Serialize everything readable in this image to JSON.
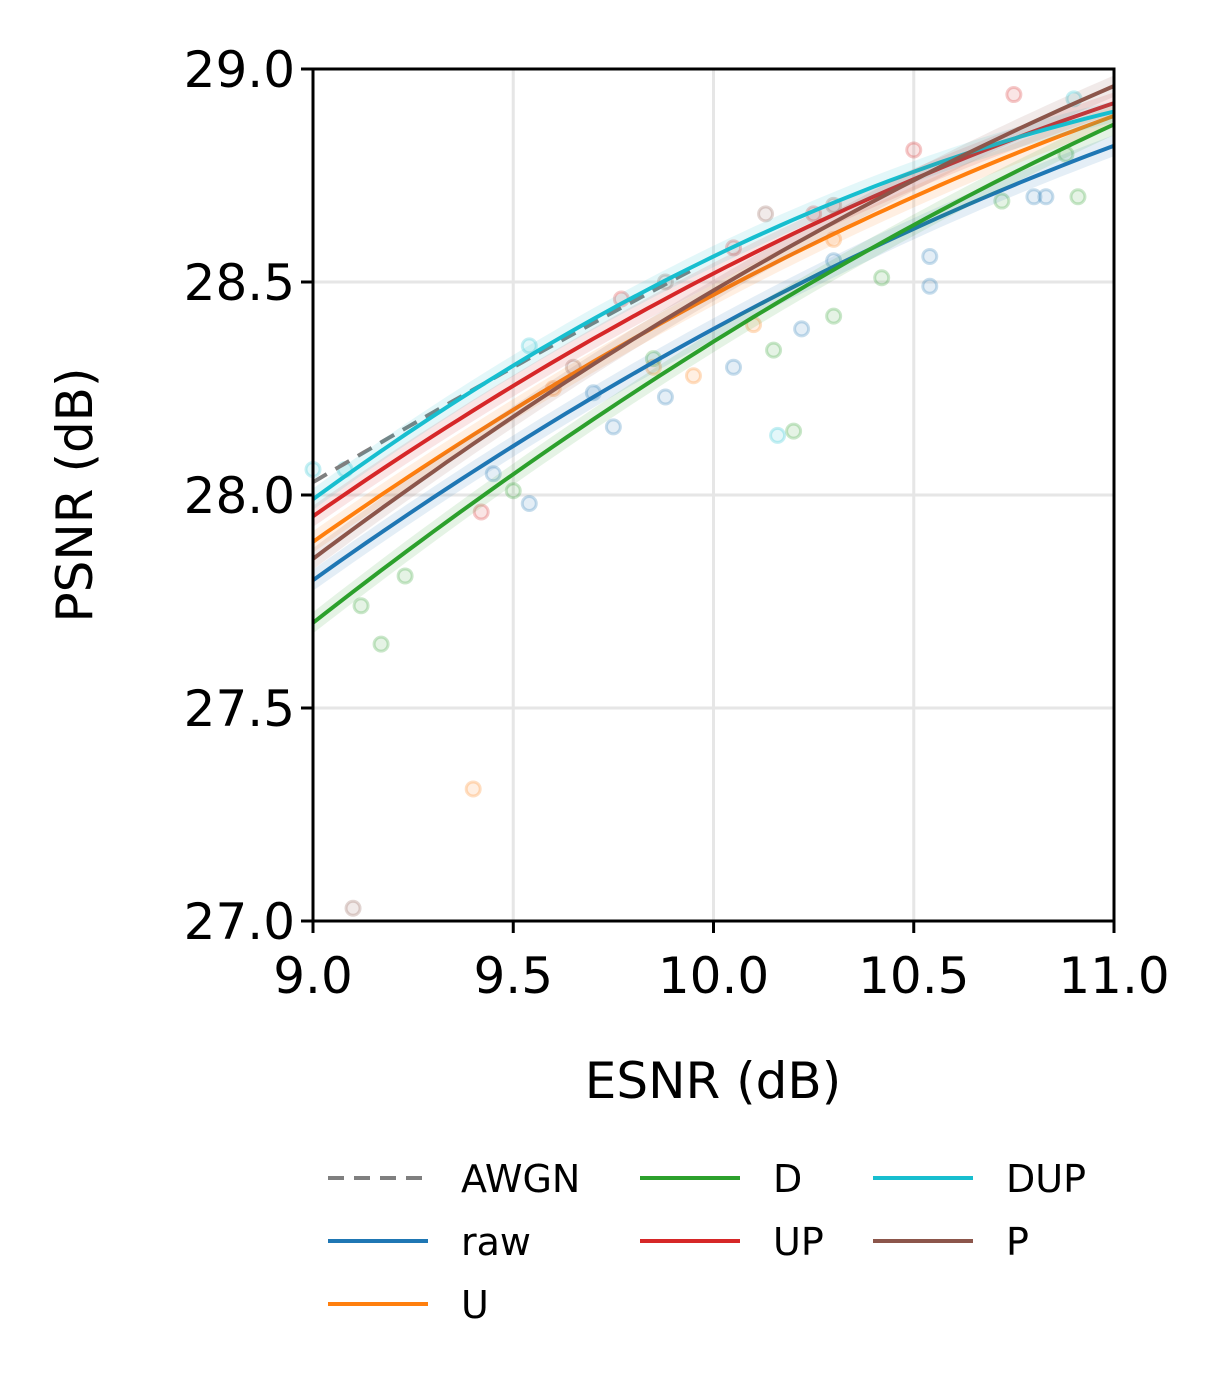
{
  "chart_data": {
    "type": "line",
    "title": "",
    "xlabel": "ESNR (dB)",
    "ylabel": "PSNR (dB)",
    "xlim": [
      9.0,
      11.0
    ],
    "ylim": [
      27.0,
      29.0
    ],
    "xticks": [
      "9.0",
      "9.5",
      "10.0",
      "10.5",
      "11.0"
    ],
    "yticks": [
      "27.0",
      "27.5",
      "28.0",
      "28.5",
      "29.0"
    ],
    "grid": true,
    "legend_placement": "bottom",
    "series": [
      {
        "name": "AWGN",
        "color": "#7f7f7f",
        "dashed": true,
        "x": [
          9.0,
          9.5,
          9.95
        ],
        "y": [
          28.03,
          28.3,
          28.53
        ],
        "points": []
      },
      {
        "name": "raw",
        "color": "#1f77b4",
        "dashed": false,
        "x": [
          9.0,
          10.0,
          11.0
        ],
        "y": [
          27.8,
          28.39,
          28.82
        ],
        "points": [
          [
            9.54,
            27.98
          ],
          [
            10.54,
            28.49
          ],
          [
            10.54,
            28.56
          ],
          [
            10.83,
            28.7
          ],
          [
            10.22,
            28.39
          ],
          [
            9.88,
            28.23
          ],
          [
            9.7,
            28.24
          ],
          [
            10.05,
            28.3
          ],
          [
            10.3,
            28.55
          ],
          [
            9.45,
            28.05
          ],
          [
            10.8,
            28.7
          ],
          [
            9.75,
            28.16
          ]
        ]
      },
      {
        "name": "U",
        "color": "#ff7f0e",
        "dashed": false,
        "x": [
          9.0,
          10.0,
          11.0
        ],
        "y": [
          27.89,
          28.47,
          28.89
        ],
        "points": [
          [
            9.4,
            27.31
          ],
          [
            9.85,
            28.3
          ],
          [
            10.1,
            28.4
          ],
          [
            9.6,
            28.25
          ],
          [
            10.3,
            28.6
          ],
          [
            9.95,
            28.28
          ]
        ]
      },
      {
        "name": "D",
        "color": "#2ca02c",
        "dashed": false,
        "x": [
          9.0,
          10.0,
          11.0
        ],
        "y": [
          27.7,
          28.36,
          28.87
        ],
        "points": [
          [
            9.17,
            27.65
          ],
          [
            9.12,
            27.74
          ],
          [
            9.23,
            27.81
          ],
          [
            10.2,
            28.15
          ],
          [
            10.91,
            28.7
          ],
          [
            10.3,
            28.42
          ],
          [
            10.42,
            28.51
          ],
          [
            10.15,
            28.34
          ],
          [
            9.5,
            28.01
          ],
          [
            9.85,
            28.32
          ],
          [
            10.88,
            28.8
          ],
          [
            10.72,
            28.69
          ]
        ]
      },
      {
        "name": "UP",
        "color": "#d62728",
        "dashed": false,
        "x": [
          9.0,
          10.0,
          11.0
        ],
        "y": [
          27.95,
          28.52,
          28.92
        ],
        "points": [
          [
            9.42,
            27.96
          ],
          [
            10.5,
            28.81
          ],
          [
            10.75,
            28.94
          ],
          [
            9.77,
            28.46
          ],
          [
            10.05,
            28.58
          ],
          [
            10.25,
            28.66
          ]
        ]
      },
      {
        "name": "DUP",
        "color": "#17becf",
        "dashed": false,
        "x": [
          9.0,
          10.0,
          11.0
        ],
        "y": [
          27.99,
          28.56,
          28.9
        ],
        "points": [
          [
            10.16,
            28.14
          ],
          [
            9.54,
            28.35
          ],
          [
            9.0,
            28.06
          ],
          [
            9.08,
            28.06
          ],
          [
            10.9,
            28.93
          ]
        ]
      },
      {
        "name": "P",
        "color": "#8c564b",
        "dashed": false,
        "x": [
          9.0,
          10.0,
          11.0
        ],
        "y": [
          27.85,
          28.48,
          28.96
        ],
        "points": [
          [
            9.1,
            27.03
          ],
          [
            10.13,
            28.66
          ],
          [
            9.88,
            28.5
          ],
          [
            10.3,
            28.68
          ],
          [
            9.65,
            28.3
          ]
        ]
      }
    ]
  }
}
